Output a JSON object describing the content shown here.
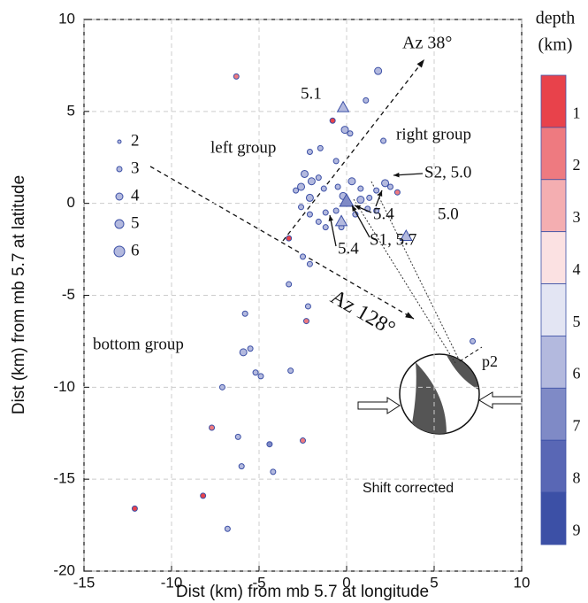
{
  "chart_data": {
    "type": "scatter",
    "xlabel": "Dist (km) from mb 5.7 at longitude",
    "ylabel": "Dist (km) from mb 5.7 at latitude",
    "xlim": [
      -15,
      10
    ],
    "xticks": [
      -15,
      -10,
      -5,
      0,
      5,
      10
    ],
    "ylim": [
      -20,
      10
    ],
    "yticks": [
      -20,
      -15,
      -10,
      -5,
      0,
      5,
      10
    ],
    "grid": true,
    "size_legend": [
      2,
      3,
      4,
      5,
      6
    ],
    "colorbar": {
      "title": [
        "depth",
        "(km)"
      ],
      "ticks": [
        1,
        2,
        3,
        4,
        5,
        6,
        7,
        8,
        9
      ],
      "colors": [
        "#e8424b",
        "#ee7a80",
        "#f4aeb1",
        "#fbe1e2",
        "#e3e5f3",
        "#b3b9de",
        "#7f8ac6",
        "#5967b5",
        "#3c50a6"
      ]
    },
    "annotations": [
      "Az 38°",
      "5.1",
      "left group",
      "right group",
      "S2, 5.0",
      "5.4",
      "5.0",
      "S1, 5.7",
      "5.4",
      "Az 128°",
      "bottom group",
      "p2",
      "Shift corrected"
    ],
    "series": [
      {
        "marker": "circle",
        "x": [
          -6.3,
          1.8,
          -0.8,
          -0.1,
          0.2,
          1.1,
          2.1,
          -2.1,
          -1.5,
          -0.6,
          -2.4,
          -2.0,
          -1.6,
          -2.6,
          -2.9,
          -2.1,
          -1.3,
          -0.5,
          0.3,
          0.8,
          1.3,
          1.7,
          2.2,
          2.5,
          1.2,
          0.8,
          -0.2,
          -0.6,
          -1.2,
          -1.6,
          -2.1,
          -2.6,
          -1.2,
          -0.3,
          0.5,
          1.7,
          2.9,
          -3.3,
          -2.5,
          -2.1,
          -3.3,
          -2.2,
          -2.3,
          -5.8,
          -5.9,
          -5.5,
          -5.2,
          -4.9,
          -3.2,
          -7.1,
          -7.7,
          -6.2,
          -6.0,
          -4.4,
          -2.5,
          -4.2,
          -12.1,
          -8.2,
          -6.8,
          7.2
        ],
        "y": [
          6.9,
          7.2,
          4.5,
          4.0,
          3.8,
          5.6,
          3.4,
          2.8,
          3.0,
          2.3,
          1.6,
          1.2,
          1.4,
          0.9,
          0.7,
          0.3,
          0.8,
          0.9,
          1.2,
          0.8,
          0.3,
          0.7,
          1.1,
          0.9,
          -0.3,
          0.2,
          0.4,
          -0.4,
          -0.5,
          -1.0,
          -0.6,
          -0.2,
          -1.3,
          -1.3,
          -0.6,
          -0.4,
          0.6,
          -1.9,
          -2.9,
          -3.3,
          -4.4,
          -5.6,
          -6.4,
          -6.0,
          -8.1,
          -7.9,
          -9.2,
          -9.4,
          -9.1,
          -10.0,
          -12.2,
          -12.7,
          -14.3,
          -13.1,
          -12.9,
          -14.6,
          -16.6,
          -15.9,
          -17.7,
          -7.5
        ],
        "size": [
          3,
          4,
          3,
          4,
          3,
          3,
          3,
          3,
          3,
          3,
          4,
          4,
          3,
          4,
          3,
          4,
          3,
          3,
          4,
          3,
          3,
          3,
          4,
          3,
          3,
          4,
          4,
          3,
          3,
          3,
          3,
          3,
          3,
          3,
          3,
          3,
          3,
          3,
          3,
          3,
          3,
          3,
          3,
          3,
          4,
          3,
          3,
          3,
          3,
          3,
          3,
          3,
          3,
          3,
          3,
          3,
          3,
          3,
          3,
          3
        ],
        "depth": [
          2,
          6,
          1,
          6,
          6,
          6,
          6,
          6,
          6,
          6,
          6,
          6,
          6,
          6,
          6,
          6,
          6,
          6,
          6,
          6,
          6,
          6,
          6,
          6,
          6,
          6,
          6,
          6,
          6,
          6,
          6,
          6,
          6,
          6,
          6,
          6,
          2,
          1,
          6,
          6,
          6,
          6,
          2,
          6,
          6,
          6,
          6,
          6,
          6,
          6,
          2,
          6,
          6,
          7,
          2,
          6,
          1,
          1,
          6,
          6
        ]
      },
      {
        "marker": "triangle",
        "x": [
          -0.2,
          0.0,
          -0.3,
          3.4
        ],
        "y": [
          5.2,
          0.1,
          -1.0,
          -1.8
        ],
        "size": [
          5,
          6,
          5,
          5
        ],
        "depth": [
          6,
          7,
          6,
          6
        ]
      }
    ]
  }
}
